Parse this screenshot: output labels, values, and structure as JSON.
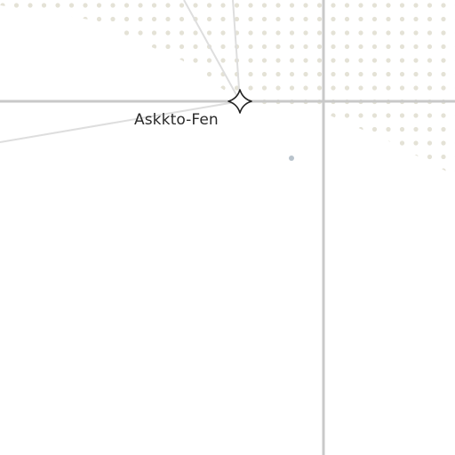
{
  "map": {
    "colors": {
      "background": "#ffffff",
      "dot_pattern": "#e4e2d6",
      "road": "#c9c9c9",
      "minor_road": "#dedede",
      "marker_stroke": "#222222",
      "poi_dot": "#b9c3cc",
      "label": "#2b2b2b"
    },
    "place": {
      "name": "Askkto-Fen",
      "marker_icon": "four-point-star-icon"
    }
  }
}
